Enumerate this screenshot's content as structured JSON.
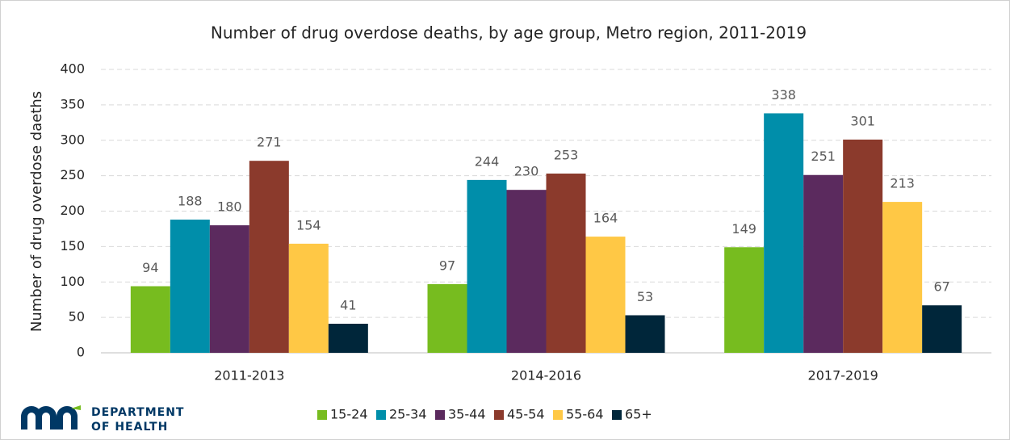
{
  "chart_data": {
    "type": "bar",
    "title": "Number of drug overdose deaths, by age group, Metro region, 2011-2019",
    "y_label": "Number of drug overdose daeths",
    "categories": [
      "2011-2013",
      "2014-2016",
      "2017-2019"
    ],
    "series": [
      {
        "name": "15-24",
        "color": "#77bc1f",
        "values": [
          94,
          97,
          149
        ]
      },
      {
        "name": "25-34",
        "color": "#008eaa",
        "values": [
          188,
          244,
          338
        ]
      },
      {
        "name": "35-44",
        "color": "#5b2a5e",
        "values": [
          180,
          230,
          251
        ]
      },
      {
        "name": "45-54",
        "color": "#8b3a2c",
        "values": [
          271,
          253,
          301
        ]
      },
      {
        "name": "55-64",
        "color": "#ffc845",
        "values": [
          154,
          164,
          213
        ]
      },
      {
        "name": "65+",
        "color": "#00263a",
        "values": [
          41,
          53,
          67
        ]
      }
    ],
    "ylim": [
      0,
      400
    ],
    "yticks": [
      0,
      50,
      100,
      150,
      200,
      250,
      300,
      350,
      400
    ],
    "grid": true,
    "legend": "bottom"
  },
  "logo": {
    "line1": "DEPARTMENT",
    "line2": "OF HEALTH"
  }
}
